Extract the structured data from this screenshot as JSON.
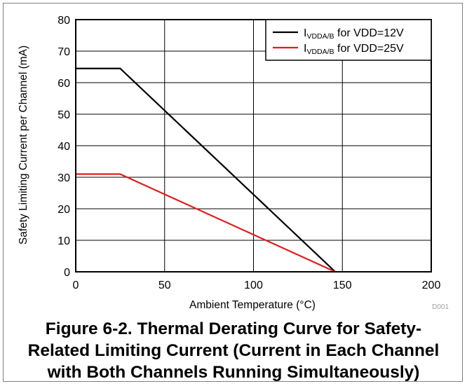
{
  "chart_data": {
    "type": "line",
    "figure_id": "D001",
    "xlabel": "Ambient Temperature (°C)",
    "ylabel": "Safety Limiting Current per Channel (mA)",
    "xlim": [
      0,
      200
    ],
    "ylim": [
      0,
      80
    ],
    "xticks": [
      0,
      50,
      100,
      150,
      200
    ],
    "yticks": [
      0,
      10,
      20,
      30,
      40,
      50,
      60,
      70,
      80
    ],
    "grid": true,
    "legend_position": "top-right",
    "series": [
      {
        "name": "IVDDA/B for VDD=12V",
        "name_main": "I",
        "name_sub": "VDDA/B",
        "name_rest": " for VDD=12V",
        "color": "#000000",
        "x": [
          0,
          25,
          146
        ],
        "y": [
          64.5,
          64.5,
          0
        ]
      },
      {
        "name": "IVDDA/B for VDD=25V",
        "name_main": "I",
        "name_sub": "VDDA/B",
        "name_rest": " for VDD=25V",
        "color": "#e41a1a",
        "x": [
          0,
          25,
          146
        ],
        "y": [
          31,
          31,
          0
        ]
      }
    ]
  },
  "caption": {
    "lines": [
      "Figure 6-2. Thermal Derating Curve for Safety-",
      "Related Limiting Current (Current in Each Channel",
      "with Both Channels Running Simultaneously)"
    ]
  }
}
